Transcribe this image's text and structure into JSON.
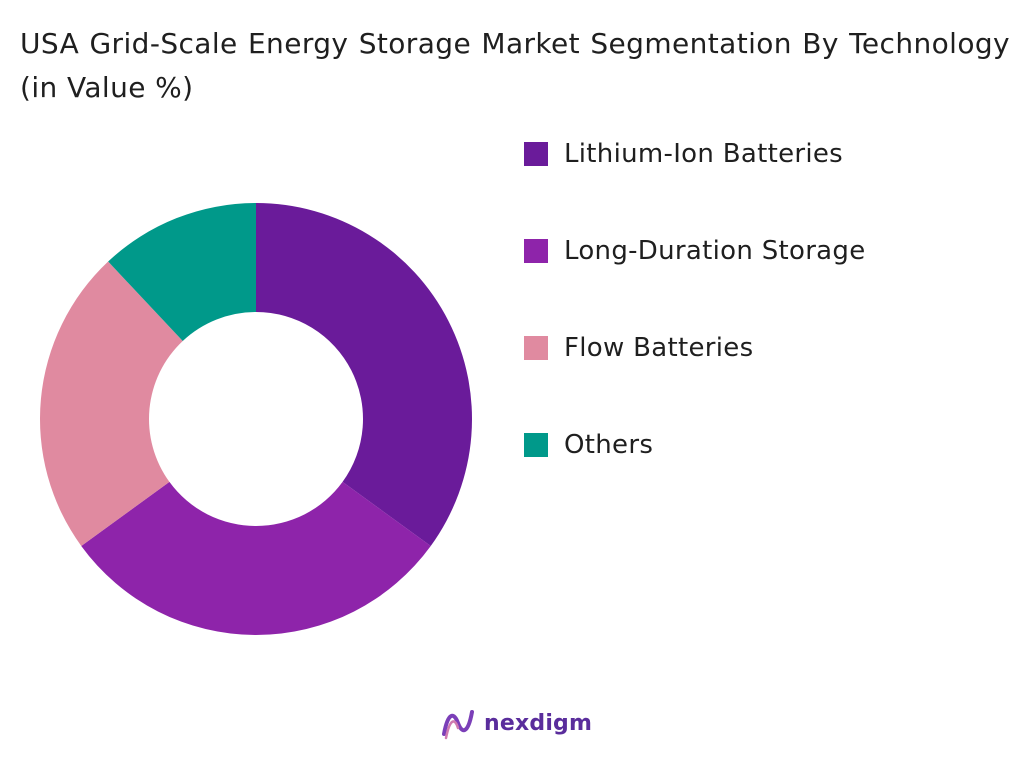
{
  "chart_data": {
    "type": "pie",
    "title": "USA Grid-Scale Energy Storage Market Segmentation By Technology (in Value %)",
    "legend_position": "right",
    "donut": true,
    "categories": [
      "Lithium-Ion Batteries",
      "Long-Duration Storage",
      "Flow Batteries",
      "Others"
    ],
    "values": [
      35,
      30,
      23,
      12
    ],
    "colors": [
      "#6a1b9a",
      "#8e24aa",
      "#e08aa0",
      "#00998a"
    ]
  },
  "brand": {
    "name": "nexdigm",
    "logo_icon": "nexdigm-logo-icon",
    "color": "#5a2d9c"
  }
}
